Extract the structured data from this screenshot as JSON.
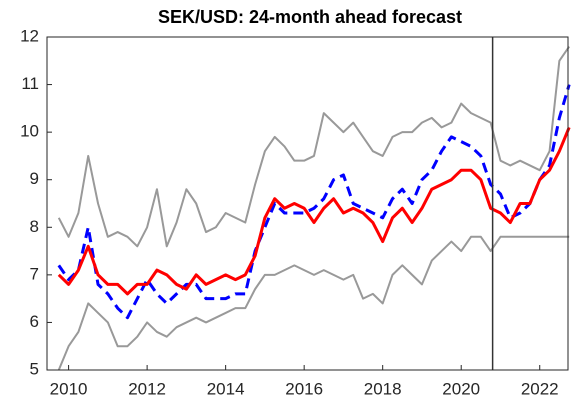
{
  "chart_data": {
    "type": "line",
    "title": "SEK/USD: 24-month ahead forecast",
    "x": [
      2009.75,
      2010.0,
      2010.25,
      2010.5,
      2010.75,
      2011.0,
      2011.25,
      2011.5,
      2011.75,
      2012.0,
      2012.25,
      2012.5,
      2012.75,
      2013.0,
      2013.25,
      2013.5,
      2013.75,
      2014.0,
      2014.25,
      2014.5,
      2014.75,
      2015.0,
      2015.25,
      2015.5,
      2015.75,
      2016.0,
      2016.25,
      2016.5,
      2016.75,
      2017.0,
      2017.25,
      2017.5,
      2017.75,
      2018.0,
      2018.25,
      2018.5,
      2018.75,
      2019.0,
      2019.25,
      2019.5,
      2019.75,
      2020.0,
      2020.25,
      2020.5,
      2020.75,
      2021.0,
      2021.25,
      2021.5,
      2021.75,
      2022.0,
      2022.25,
      2022.5,
      2022.75
    ],
    "series": [
      {
        "color": "#999999",
        "style": "solid",
        "width": 2,
        "values": [
          8.2,
          7.8,
          8.3,
          9.5,
          8.5,
          7.8,
          7.9,
          7.8,
          7.6,
          8.0,
          8.8,
          7.6,
          8.1,
          8.8,
          8.5,
          7.9,
          8.0,
          8.3,
          8.2,
          8.1,
          8.9,
          9.6,
          9.9,
          9.7,
          9.4,
          9.4,
          9.5,
          10.4,
          10.2,
          10.0,
          10.2,
          9.9,
          9.6,
          9.5,
          9.9,
          10.0,
          10.0,
          10.2,
          10.3,
          10.1,
          10.2,
          10.6,
          10.4,
          10.3,
          10.2,
          9.4,
          9.3,
          9.4,
          9.3,
          9.2,
          9.6,
          11.5,
          11.8
        ]
      },
      {
        "color": "#999999",
        "style": "solid",
        "width": 2,
        "values": [
          5.0,
          5.5,
          5.8,
          6.4,
          6.2,
          6.0,
          5.5,
          5.5,
          5.7,
          6.0,
          5.8,
          5.7,
          5.9,
          6.0,
          6.1,
          6.0,
          6.1,
          6.2,
          6.3,
          6.3,
          6.7,
          7.0,
          7.0,
          7.1,
          7.2,
          7.1,
          7.0,
          7.1,
          7.0,
          6.9,
          7.0,
          6.5,
          6.6,
          6.4,
          7.0,
          7.2,
          7.0,
          6.8,
          7.3,
          7.5,
          7.7,
          7.5,
          7.8,
          7.8,
          7.5,
          7.8,
          7.8,
          7.8,
          7.8,
          7.8,
          7.8,
          7.8,
          7.8
        ]
      },
      {
        "color": "#0000ff",
        "style": "dashed",
        "width": 3,
        "values": [
          7.2,
          6.9,
          7.1,
          8.0,
          6.8,
          6.6,
          6.3,
          6.1,
          6.5,
          6.9,
          6.6,
          6.4,
          6.6,
          6.8,
          6.8,
          6.5,
          6.5,
          6.5,
          6.6,
          6.6,
          7.5,
          8.0,
          8.5,
          8.3,
          8.3,
          8.3,
          8.4,
          8.6,
          9.0,
          9.1,
          8.5,
          8.4,
          8.3,
          8.2,
          8.6,
          8.8,
          8.5,
          9.0,
          9.2,
          9.6,
          9.9,
          9.8,
          9.7,
          9.5,
          8.9,
          8.7,
          8.2,
          8.3,
          8.5,
          9.0,
          9.3,
          10.3,
          11.0
        ]
      },
      {
        "color": "#ff0000",
        "style": "solid",
        "width": 3,
        "values": [
          7.0,
          6.8,
          7.1,
          7.6,
          7.0,
          6.8,
          6.8,
          6.6,
          6.8,
          6.8,
          7.1,
          7.0,
          6.8,
          6.7,
          7.0,
          6.8,
          6.9,
          7.0,
          6.9,
          7.0,
          7.4,
          8.2,
          8.6,
          8.4,
          8.5,
          8.4,
          8.1,
          8.4,
          8.6,
          8.3,
          8.4,
          8.3,
          8.1,
          7.7,
          8.2,
          8.4,
          8.1,
          8.4,
          8.8,
          8.9,
          9.0,
          9.2,
          9.2,
          9.0,
          8.4,
          8.3,
          8.1,
          8.5,
          8.5,
          9.0,
          9.2,
          9.6,
          10.1
        ]
      }
    ],
    "vline": 2020.8,
    "xlim": [
      2009.45,
      2022.72
    ],
    "xticks": [
      2010,
      2012,
      2014,
      2016,
      2018,
      2020,
      2022
    ],
    "ylim": [
      5,
      12
    ],
    "yticks": [
      5,
      6,
      7,
      8,
      9,
      10,
      11,
      12
    ],
    "grid": false
  }
}
